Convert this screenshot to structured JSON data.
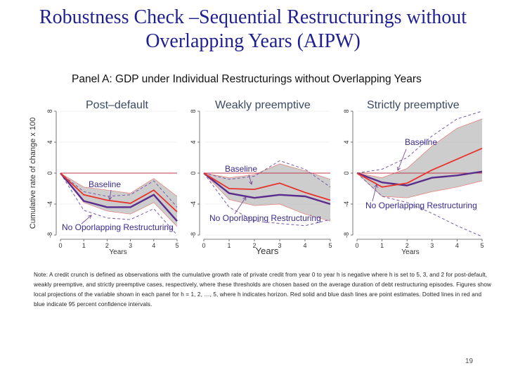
{
  "slide": {
    "title_line1": "Robustness Check –Sequential Restructurings without",
    "title_line2": "Overlapping Years (AIPW)",
    "panel_title": "Panel A: GDP under Individual Restructurings without Overlapping Years",
    "note": "Note: A credit crunch is defined as observations with the cumulative growth rate of private credit from year 0 to year h is negative where h is set to 5, 3, and 2 for post-default, weakly preemptive, and strictly preemptive cases, respectively, where these thresholds are chosen based on the average duration of debt restructuring episodes. Figures show local projections of the variable shown in each panel for h = 1, 2, …, 5, where h indicates horizon. Red solid and blue dash lines are point estimates. Dotted lines in red and blue indicate 95 percent confidence intervals.",
    "page_number": "19"
  },
  "colors": {
    "title": "#1f1f8f",
    "baseline": "#e8332b",
    "baseline_ci": "#b8b8b8",
    "no_overlap": "#5a2d8c",
    "no_overlap_ci": "#7a5aa8",
    "zero_line": "#c0394b"
  },
  "chart_data": [
    {
      "type": "line",
      "title": "Post–default",
      "ylabel": "Cumulative rate of change x 100",
      "xlabel": "Years",
      "xticks": [
        "0",
        "1",
        "2",
        "3",
        "4",
        "5"
      ],
      "yticks": [
        "-8",
        "-4",
        "0",
        "4",
        "8"
      ],
      "xlim": [
        0,
        5
      ],
      "ylim": [
        -8,
        8
      ],
      "annotations": [
        "Baseline",
        "No Oporlapping Restructuring"
      ],
      "series": [
        {
          "name": "Baseline",
          "role": "estimate",
          "x": [
            0,
            1,
            2,
            3,
            4,
            5
          ],
          "y": [
            0,
            -2.8,
            -3.5,
            -3.9,
            -2.2,
            -5.0
          ]
        },
        {
          "role": "ci_lower",
          "x": [
            0,
            1,
            2,
            3,
            4,
            5
          ],
          "y": [
            0,
            -3.8,
            -4.9,
            -5.3,
            -3.8,
            -6.9
          ]
        },
        {
          "role": "ci_upper",
          "x": [
            0,
            1,
            2,
            3,
            4,
            5
          ],
          "y": [
            0,
            -1.8,
            -2.2,
            -2.6,
            -0.7,
            -3.0
          ]
        },
        {
          "name": "No Oporlapping Restructuring",
          "role": "estimate",
          "x": [
            0,
            1,
            2,
            3,
            4,
            5
          ],
          "y": [
            0,
            -3.6,
            -4.4,
            -4.4,
            -2.8,
            -6.2
          ]
        },
        {
          "role": "ci_lower",
          "x": [
            0,
            1,
            2,
            3,
            4,
            5
          ],
          "y": [
            0,
            -4.8,
            -5.8,
            -6.0,
            -4.6,
            -8.0
          ]
        },
        {
          "role": "ci_upper",
          "x": [
            0,
            1,
            2,
            3,
            4,
            5
          ],
          "y": [
            0,
            -2.4,
            -3.0,
            -2.8,
            -1.0,
            -4.4
          ]
        }
      ]
    },
    {
      "type": "line",
      "title": "Weakly preemptive",
      "xlabel": "Years",
      "xticks": [
        "0",
        "1",
        "2",
        "3",
        "4",
        "5"
      ],
      "yticks": [
        "-8",
        "-4",
        "0",
        "4",
        "8"
      ],
      "xlim": [
        0,
        5
      ],
      "ylim": [
        -8,
        8
      ],
      "annotations": [
        "Baseline",
        "No Oporlapping Restructuring"
      ],
      "series": [
        {
          "name": "Baseline",
          "role": "estimate",
          "x": [
            0,
            1,
            2,
            3,
            4,
            5
          ],
          "y": [
            0,
            -2.0,
            -2.1,
            -1.3,
            -2.5,
            -3.5
          ]
        },
        {
          "role": "ci_lower",
          "x": [
            0,
            1,
            2,
            3,
            4,
            5
          ],
          "y": [
            0,
            -3.4,
            -4.2,
            -4.0,
            -5.3,
            -6.2
          ]
        },
        {
          "role": "ci_upper",
          "x": [
            0,
            1,
            2,
            3,
            4,
            5
          ],
          "y": [
            0,
            -0.6,
            -0.2,
            1.2,
            0.3,
            -0.8
          ]
        },
        {
          "name": "No Oporlapping Restructuring",
          "role": "estimate",
          "x": [
            0,
            1,
            2,
            3,
            4,
            5
          ],
          "y": [
            0,
            -2.6,
            -3.2,
            -2.8,
            -3.0,
            -4.0
          ]
        },
        {
          "role": "ci_lower",
          "x": [
            0,
            1,
            2,
            3,
            4,
            5
          ],
          "y": [
            0,
            -4.4,
            -6.2,
            -6.5,
            -6.8,
            -6.0
          ]
        },
        {
          "role": "ci_upper",
          "x": [
            0,
            1,
            2,
            3,
            4,
            5
          ],
          "y": [
            0,
            -0.8,
            -0.4,
            1.6,
            0.5,
            -1.8
          ]
        }
      ]
    },
    {
      "type": "line",
      "title": "Strictly preemptive",
      "xlabel": "Years",
      "xticks": [
        "0",
        "1",
        "2",
        "3",
        "4",
        "5"
      ],
      "yticks": [
        "-8",
        "-4",
        "0",
        "4",
        "8"
      ],
      "xlim": [
        0,
        5
      ],
      "ylim": [
        -8,
        8
      ],
      "annotations": [
        "Baseline",
        "No Operlapping Restructuring"
      ],
      "series": [
        {
          "name": "Baseline",
          "role": "estimate",
          "x": [
            0,
            1,
            2,
            3,
            4,
            5
          ],
          "y": [
            0,
            -1.8,
            -1.3,
            0.4,
            1.8,
            3.2
          ]
        },
        {
          "role": "ci_lower",
          "x": [
            0,
            1,
            2,
            3,
            4,
            5
          ],
          "y": [
            0,
            -3.0,
            -3.2,
            -2.4,
            -1.8,
            -1.0
          ]
        },
        {
          "role": "ci_upper",
          "x": [
            0,
            1,
            2,
            3,
            4,
            5
          ],
          "y": [
            0,
            -0.6,
            0.6,
            3.5,
            5.8,
            7.0
          ]
        },
        {
          "name": "No Operlapping Restructuring",
          "role": "estimate",
          "x": [
            0,
            1,
            2,
            3,
            4,
            5
          ],
          "y": [
            0,
            -1.2,
            -1.6,
            -0.6,
            -0.3,
            0.2
          ]
        },
        {
          "role": "ci_lower",
          "x": [
            0,
            1,
            2,
            3,
            4,
            5
          ],
          "y": [
            0,
            -3.0,
            -3.8,
            -5.2,
            -6.8,
            -8.2
          ]
        },
        {
          "role": "ci_upper",
          "x": [
            0,
            1,
            2,
            3,
            4,
            5
          ],
          "y": [
            0,
            0.5,
            2.0,
            4.8,
            7.0,
            8.0
          ]
        }
      ]
    }
  ]
}
